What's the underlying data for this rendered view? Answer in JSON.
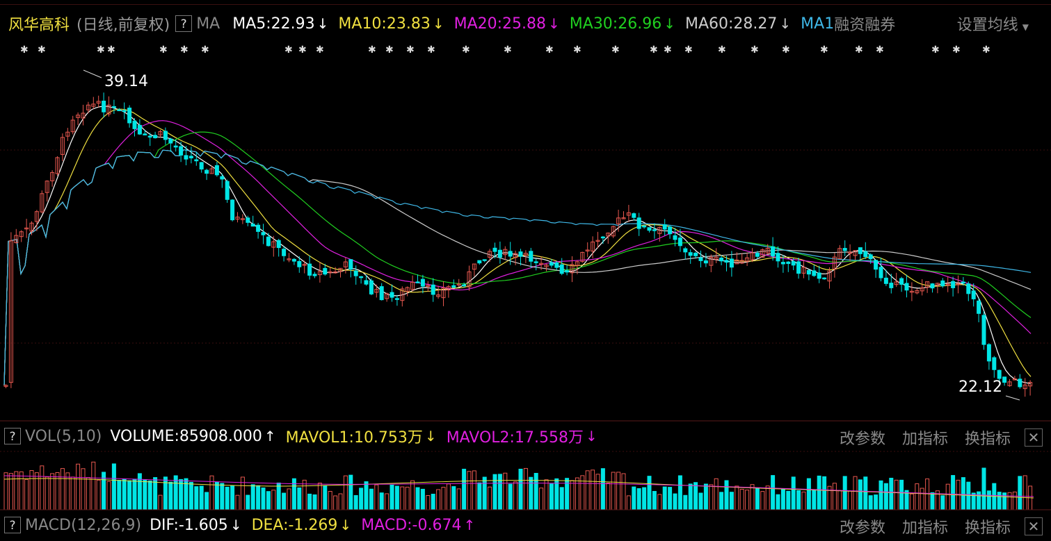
{
  "main": {
    "stock_name": "风华高科",
    "mode": "(日线,前复权)",
    "help": "?",
    "indicator": "MA",
    "ma": [
      {
        "label": "MA5:22.93",
        "arrow": "↓",
        "color": "#ffffff"
      },
      {
        "label": "MA10:23.83",
        "arrow": "↓",
        "color": "#f0e040"
      },
      {
        "label": "MA20:25.88",
        "arrow": "↓",
        "color": "#e020e0"
      },
      {
        "label": "MA30:26.96",
        "arrow": "↓",
        "color": "#20d020"
      },
      {
        "label": "MA60:28.27",
        "arrow": "↓",
        "color": "#cccccc"
      },
      {
        "label": "MA1",
        "arrow": "",
        "color": "#3fb8e8"
      }
    ],
    "rzrq": "融资融券",
    "set_ma": "设置均线",
    "high_label": "39.14",
    "low_label": "22.12"
  },
  "vol": {
    "help": "?",
    "name": "VOL(5,10)",
    "volume": "VOLUME:85908.000",
    "volume_arrow": "↑",
    "mavol1": "MAVOL1:10.753万",
    "mavol1_arrow": "↓",
    "mavol2": "MAVOL2:17.558万",
    "mavol2_arrow": "↓",
    "actions": [
      "改参数",
      "加指标",
      "换指标"
    ],
    "close": "✕"
  },
  "macd": {
    "help": "?",
    "name": "MACD(12,26,9)",
    "dif": "DIF:-1.605",
    "dif_arrow": "↓",
    "dea": "DEA:-1.269",
    "dea_arrow": "↓",
    "macd": "MACD:-0.674",
    "macd_arrow": "↑",
    "actions": [
      "改参数",
      "加指标",
      "换指标"
    ],
    "close": "✕"
  },
  "colors": {
    "up": "#e8584f",
    "down": "#00e5e5",
    "background": "#000000"
  }
}
